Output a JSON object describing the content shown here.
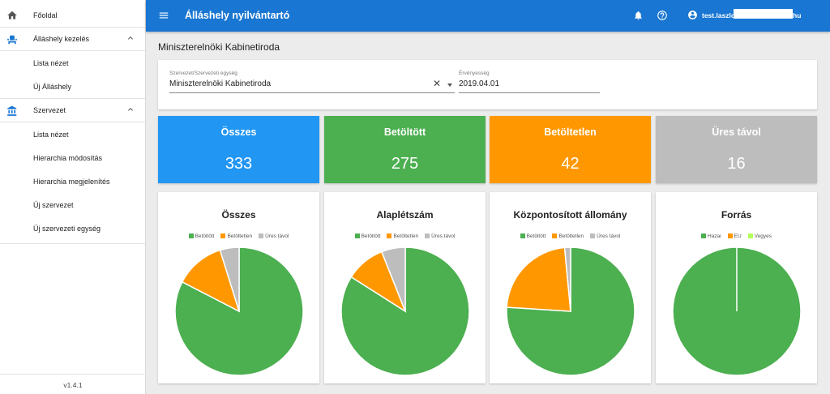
{
  "sidebar": {
    "home": {
      "label": "Főoldal",
      "icon": "home-icon"
    },
    "positions_group": {
      "label": "Álláshely kezelés",
      "icon": "seat-icon"
    },
    "positions_items": [
      "Lista nézet",
      "Új Álláshely"
    ],
    "org_group": {
      "label": "Szervezet",
      "icon": "bank-icon"
    },
    "org_items": [
      "Lista nézet",
      "Hierarchia módosítás",
      "Hierarchia megjelenítés",
      "Új szervezet",
      "Új szervezeti egység"
    ],
    "version": "v1.4.1"
  },
  "topbar": {
    "title": "Álláshely nyilvántartó",
    "user_prefix": "test.laszlo",
    "user_suffix": "hu"
  },
  "page": {
    "title": "Miniszterelnöki Kabinetiroda"
  },
  "filters": {
    "org_label": "Szervezet/Szervezeti egység",
    "org_value": "Miniszterelnöki Kabinetiroda",
    "validity_label": "Érvényesség",
    "validity_value": "2019.04.01"
  },
  "stats": [
    {
      "label": "Összes",
      "value": "333",
      "color": "#2196f3"
    },
    {
      "label": "Betöltött",
      "value": "275",
      "color": "#4caf50"
    },
    {
      "label": "Betöltetlen",
      "value": "42",
      "color": "#ff9800"
    },
    {
      "label": "Üres távol",
      "value": "16",
      "color": "#bdbdbd"
    }
  ],
  "colors": {
    "green": "#4caf50",
    "orange": "#ff9800",
    "grey": "#bdbdbd",
    "lime": "#b2ff59",
    "blue": "#1976d2"
  },
  "chart_data": [
    {
      "type": "pie",
      "title": "Összes",
      "labels": [
        "Betöltött",
        "Betöltetlen",
        "Üres távol"
      ],
      "values": [
        275,
        42,
        16
      ],
      "colors": [
        "#4caf50",
        "#ff9800",
        "#bdbdbd"
      ]
    },
    {
      "type": "pie",
      "title": "Alaplétszám",
      "labels": [
        "Betöltött",
        "Betöltetlen",
        "Üres távol"
      ],
      "values": [
        84,
        10,
        6
      ],
      "colors": [
        "#4caf50",
        "#ff9800",
        "#bdbdbd"
      ]
    },
    {
      "type": "pie",
      "title": "Központosított állomány",
      "labels": [
        "Betöltött",
        "Betöltetlen",
        "Üres távol"
      ],
      "values": [
        76,
        22.5,
        1.5
      ],
      "colors": [
        "#4caf50",
        "#ff9800",
        "#bdbdbd"
      ]
    },
    {
      "type": "pie",
      "title": "Forrás",
      "labels": [
        "Hazai",
        "EU",
        "Vegyes"
      ],
      "values": [
        100,
        0,
        0
      ],
      "colors": [
        "#4caf50",
        "#ff9800",
        "#b2ff59"
      ]
    }
  ]
}
